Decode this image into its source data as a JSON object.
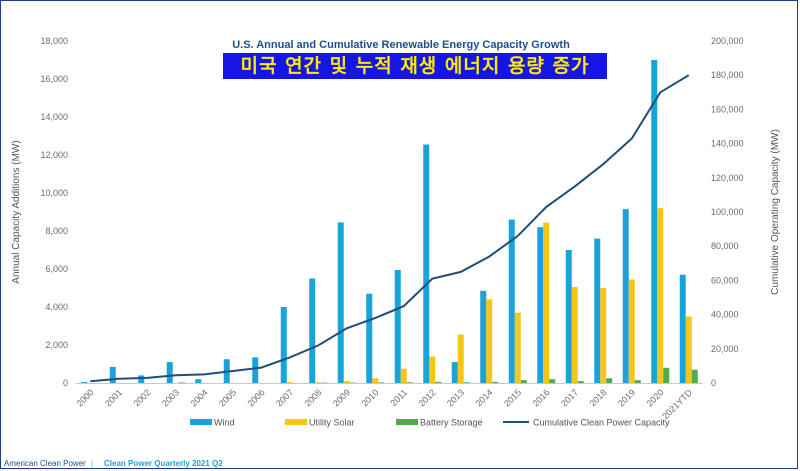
{
  "title": "U.S. Annual and Cumulative Renewable Energy Capacity Growth",
  "title_ko": "미국 연간 및 누적 재생 에너지 용량 증가",
  "footer": {
    "organization": "American Clean Power",
    "separator": "|",
    "publication": "Clean Power Quarterly 2021 Q2"
  },
  "colors": {
    "wind": "#19a3d8",
    "solar": "#f5c518",
    "battery": "#4cae4c",
    "cumulative": "#1f4e79",
    "title_banner_bg": "#1515e6",
    "title_banner_text": "#ffea00"
  },
  "chart_data": {
    "type": "bar",
    "title": "U.S. Annual and Cumulative Renewable Energy Capacity Growth",
    "categories": [
      "2000",
      "2001",
      "2002",
      "2003",
      "2004",
      "2005",
      "2006",
      "2007",
      "2008",
      "2009",
      "2010",
      "2011",
      "2012",
      "2013",
      "2014",
      "2015",
      "2016",
      "2017",
      "2018",
      "2019",
      "2020",
      "2021YTD"
    ],
    "ylabel": "Annual Capacity Additions (MW)",
    "ylabel_right": "Cumulative Operating Capacity (MW)",
    "ylim": [
      0,
      18000
    ],
    "yticks": [
      "0",
      "2,000",
      "4,000",
      "6,000",
      "8,000",
      "10,000",
      "12,000",
      "14,000",
      "16,000",
      "18,000"
    ],
    "ylim_right": [
      0,
      200000
    ],
    "yticks_right": [
      "0",
      "20,000",
      "40,000",
      "60,000",
      "80,000",
      "100,000",
      "120,000",
      "140,000",
      "160,000",
      "180,000",
      "200,000"
    ],
    "legend_position": "bottom",
    "grid": false,
    "series": [
      {
        "name": "Wind",
        "type": "bar",
        "axis": "left",
        "values": [
          50,
          850,
          400,
          1100,
          200,
          1250,
          1350,
          4000,
          5500,
          8450,
          4700,
          5950,
          12550,
          1100,
          4850,
          8600,
          8200,
          7000,
          7600,
          9150,
          17000,
          5700
        ]
      },
      {
        "name": "Utility Solar",
        "type": "bar",
        "axis": "left",
        "values": [
          0,
          0,
          0,
          0,
          0,
          0,
          0,
          50,
          30,
          100,
          250,
          750,
          1400,
          2550,
          4400,
          3700,
          8450,
          5050,
          5000,
          5450,
          9200,
          3500
        ]
      },
      {
        "name": "Battery Storage",
        "type": "bar",
        "axis": "left",
        "values": [
          0,
          0,
          0,
          30,
          0,
          0,
          0,
          0,
          20,
          20,
          30,
          40,
          60,
          40,
          60,
          150,
          200,
          100,
          250,
          150,
          800,
          700
        ]
      },
      {
        "name": "Cumulative Clean Power Capacity",
        "type": "line",
        "axis": "right",
        "values": [
          1000,
          2500,
          3000,
          4500,
          5000,
          7000,
          9000,
          15000,
          22000,
          32000,
          38000,
          45000,
          61000,
          65000,
          74000,
          86000,
          103000,
          115000,
          128000,
          143000,
          170000,
          180000
        ]
      }
    ]
  }
}
